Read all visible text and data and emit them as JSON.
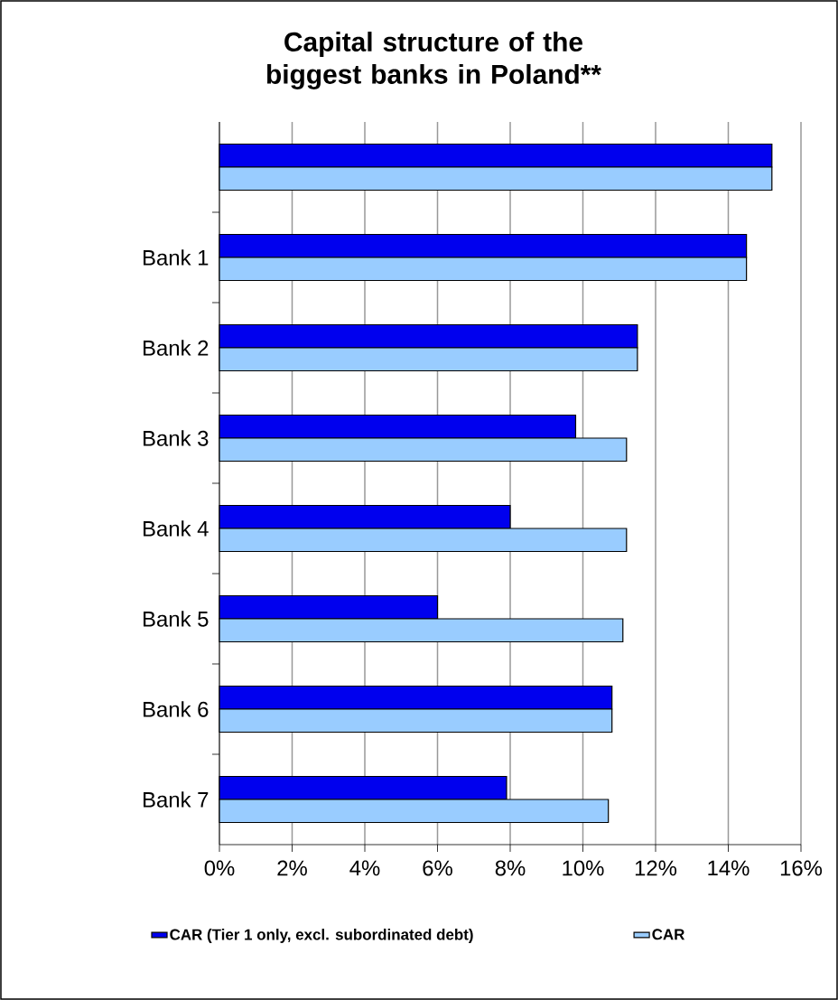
{
  "chart_data": {
    "type": "bar",
    "orientation": "horizontal",
    "title": "Capital structure of the biggest banks in Poland**",
    "categories": [
      null,
      "Bank 1",
      "Bank 2",
      "Bank 3",
      "Bank 4",
      "Bank 5",
      "Bank 6",
      "Bank 7"
    ],
    "series": [
      {
        "name": "CAR (Tier 1 only, excl. subordinated debt)",
        "color": "#0000ee",
        "values": [
          15.2,
          14.5,
          11.5,
          9.8,
          8.0,
          6.0,
          10.8,
          7.9
        ]
      },
      {
        "name": "CAR",
        "color": "#99ccff",
        "values": [
          15.2,
          14.5,
          11.5,
          11.2,
          11.2,
          11.1,
          10.8,
          10.7
        ]
      }
    ],
    "xlim": [
      0,
      16
    ],
    "xticks": [
      {
        "value": 0,
        "label": "0%"
      },
      {
        "value": 2,
        "label": "2%"
      },
      {
        "value": 4,
        "label": "4%"
      },
      {
        "value": 6,
        "label": "6%"
      },
      {
        "value": 8,
        "label": "8%"
      },
      {
        "value": 10,
        "label": "10%"
      },
      {
        "value": 12,
        "label": "12%"
      },
      {
        "value": 14,
        "label": "14%"
      },
      {
        "value": 16,
        "label": "16%"
      }
    ],
    "grid": "x",
    "legend": "bottom"
  }
}
